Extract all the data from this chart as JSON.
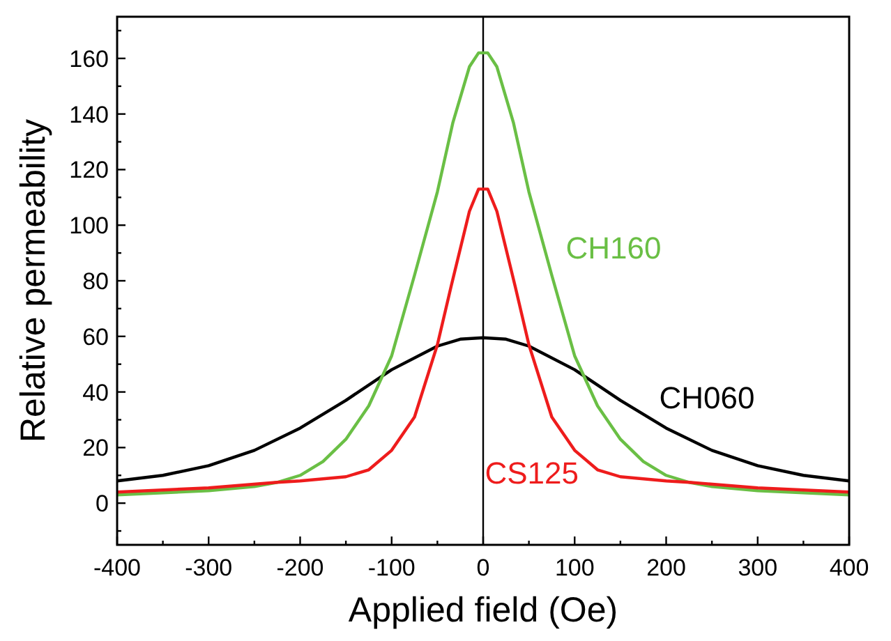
{
  "chart_data": {
    "type": "line",
    "xlabel": "Applied field (Oe)",
    "ylabel": "Relative permeability",
    "xlim": [
      -400,
      400
    ],
    "ylim": [
      -15,
      175
    ],
    "xticks": [
      -400,
      {
        "value": -350,
        "label": null
      },
      -300,
      {
        "value": -250,
        "label": null
      },
      -200,
      {
        "value": -150,
        "label": null
      },
      -100,
      {
        "value": -50,
        "label": null
      },
      0,
      {
        "value": 50,
        "label": null
      },
      100,
      {
        "value": 150,
        "label": null
      },
      200,
      {
        "value": 250,
        "label": null
      },
      300,
      {
        "value": 350,
        "label": null
      },
      400
    ],
    "yticks": [
      {
        "value": -10,
        "label": null
      },
      0,
      {
        "value": 10,
        "label": null
      },
      20,
      {
        "value": 30,
        "label": null
      },
      40,
      {
        "value": 50,
        "label": null
      },
      60,
      {
        "value": 70,
        "label": null
      },
      80,
      {
        "value": 90,
        "label": null
      },
      100,
      {
        "value": 110,
        "label": null
      },
      120,
      {
        "value": 130,
        "label": null
      },
      140,
      {
        "value": 150,
        "label": null
      },
      160,
      {
        "value": 170,
        "label": null
      }
    ],
    "grid": false,
    "marker": "none",
    "line_style": "solid",
    "ref_lines": [
      {
        "axis": "x",
        "value": 0,
        "color": "#000000"
      }
    ],
    "series": [
      {
        "name": "CH060",
        "color": "#000000",
        "x": [
          -400,
          -350,
          -300,
          -250,
          -200,
          -150,
          -100,
          -50,
          -25,
          0,
          25,
          50,
          100,
          150,
          200,
          250,
          300,
          350,
          400
        ],
        "values": [
          8,
          10,
          13.5,
          19,
          27,
          37,
          48,
          56.5,
          59,
          59.5,
          59,
          56.5,
          48,
          37,
          27,
          19,
          13.5,
          10,
          8
        ]
      },
      {
        "name": "CH160",
        "color": "#6abf45",
        "x": [
          -400,
          -300,
          -250,
          -225,
          -200,
          -175,
          -150,
          -125,
          -100,
          -75,
          -50,
          -33,
          -15,
          -5,
          5,
          15,
          33,
          50,
          75,
          100,
          125,
          150,
          175,
          200,
          225,
          250,
          300,
          400
        ],
        "values": [
          3,
          4.5,
          6,
          7.5,
          10,
          15,
          23,
          35,
          53,
          82,
          112,
          137,
          157,
          162,
          162,
          157,
          137,
          112,
          82,
          53,
          35,
          23,
          15,
          10,
          7.5,
          6,
          4.5,
          3
        ]
      },
      {
        "name": "CS125",
        "color": "#ee1c1c",
        "x": [
          -400,
          -300,
          -225,
          -200,
          -150,
          -125,
          -100,
          -75,
          -50,
          -35,
          -15,
          -5,
          5,
          15,
          35,
          50,
          75,
          100,
          125,
          150,
          200,
          225,
          300,
          400
        ],
        "values": [
          4,
          5.5,
          7.5,
          8,
          9.5,
          12,
          19,
          31,
          57,
          78,
          105,
          113,
          113,
          105,
          78,
          57,
          31,
          19,
          12,
          9.5,
          8,
          7.5,
          5.5,
          4
        ]
      }
    ]
  }
}
